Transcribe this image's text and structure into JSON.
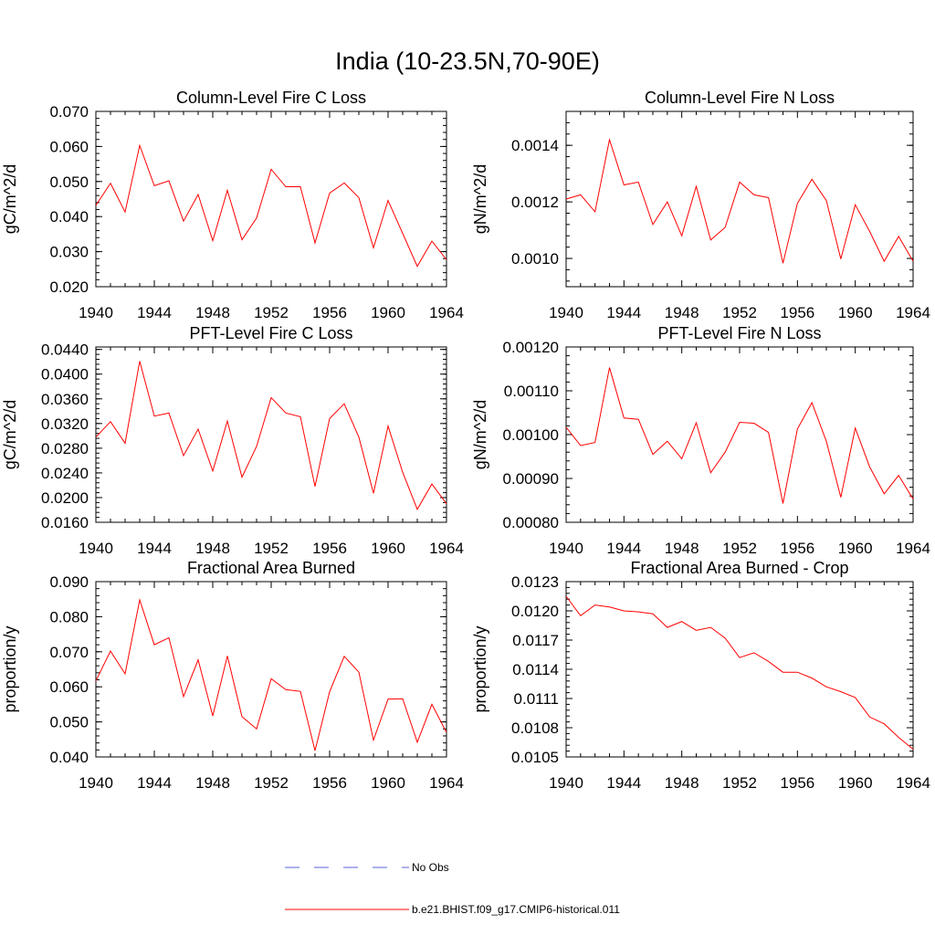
{
  "figure": {
    "title": "India (10-23.5N,70-90E)"
  },
  "legend": {
    "entries": [
      {
        "label": "No Obs",
        "color": "#5a63d4",
        "style": "dashed"
      },
      {
        "label": "b.e21.BHIST.f09_g17.CMIP6-historical.011",
        "color": "#ff0000",
        "style": "solid"
      }
    ]
  },
  "chart_data": [
    {
      "type": "line",
      "title": "Column-Level Fire C Loss",
      "ylabel": "gC/m^2/d",
      "xlabel": "",
      "xlim": [
        1940,
        1964
      ],
      "ylim": [
        0.02,
        0.07
      ],
      "x_ticks": [
        1940,
        1944,
        1948,
        1952,
        1956,
        1960,
        1964
      ],
      "y_ticks": [
        0.02,
        0.03,
        0.04,
        0.05,
        0.06,
        0.07
      ],
      "y_tick_labels": [
        "0.020",
        "0.030",
        "0.040",
        "0.050",
        "0.060",
        "0.070"
      ],
      "x": [
        1940,
        1941,
        1942,
        1943,
        1944,
        1945,
        1946,
        1947,
        1948,
        1949,
        1950,
        1951,
        1952,
        1953,
        1954,
        1955,
        1956,
        1957,
        1958,
        1959,
        1960,
        1961,
        1962,
        1963,
        1964
      ],
      "series": [
        {
          "name": "b.e21.BHIST.f09_g17.CMIP6-historical.011",
          "color": "#ff0000",
          "values": [
            0.0432,
            0.0495,
            0.0413,
            0.0603,
            0.0488,
            0.0502,
            0.0387,
            0.0463,
            0.0331,
            0.0475,
            0.0334,
            0.0396,
            0.0535,
            0.0485,
            0.0485,
            0.0325,
            0.0467,
            0.0496,
            0.0454,
            0.0311,
            0.0446,
            0.0352,
            0.0258,
            0.033,
            0.0277
          ]
        }
      ]
    },
    {
      "type": "line",
      "title": "Column-Level Fire N Loss",
      "ylabel": "gN/m^2/d",
      "xlabel": "",
      "xlim": [
        1940,
        1964
      ],
      "ylim": [
        0.0009,
        0.00152
      ],
      "x_ticks": [
        1940,
        1944,
        1948,
        1952,
        1956,
        1960,
        1964
      ],
      "y_ticks": [
        0.001,
        0.0012,
        0.0014
      ],
      "y_tick_labels": [
        "0.0010",
        "0.0012",
        "0.0014"
      ],
      "x": [
        1940,
        1941,
        1942,
        1943,
        1944,
        1945,
        1946,
        1947,
        1948,
        1949,
        1950,
        1951,
        1952,
        1953,
        1954,
        1955,
        1956,
        1957,
        1958,
        1959,
        1960,
        1961,
        1962,
        1963,
        1964
      ],
      "series": [
        {
          "name": "b.e21.BHIST.f09_g17.CMIP6-historical.011",
          "color": "#ff0000",
          "values": [
            0.00121,
            0.001225,
            0.001165,
            0.00142,
            0.00126,
            0.00127,
            0.00112,
            0.0012,
            0.00108,
            0.001255,
            0.001065,
            0.00111,
            0.00127,
            0.001225,
            0.001215,
            0.000983,
            0.001195,
            0.00128,
            0.001205,
            0.000998,
            0.00119,
            0.001095,
            0.00099,
            0.001078,
            0.00099
          ]
        }
      ]
    },
    {
      "type": "line",
      "title": "PFT-Level Fire C Loss",
      "ylabel": "gC/m^2/d",
      "xlabel": "",
      "xlim": [
        1940,
        1964
      ],
      "ylim": [
        0.016,
        0.0444
      ],
      "x_ticks": [
        1940,
        1944,
        1948,
        1952,
        1956,
        1960,
        1964
      ],
      "y_ticks": [
        0.016,
        0.02,
        0.024,
        0.028,
        0.032,
        0.036,
        0.04,
        0.044
      ],
      "y_tick_labels": [
        "0.0160",
        "0.0200",
        "0.0240",
        "0.0280",
        "0.0320",
        "0.0360",
        "0.0400",
        "0.0440"
      ],
      "x": [
        1940,
        1941,
        1942,
        1943,
        1944,
        1945,
        1946,
        1947,
        1948,
        1949,
        1950,
        1951,
        1952,
        1953,
        1954,
        1955,
        1956,
        1957,
        1958,
        1959,
        1960,
        1961,
        1962,
        1963,
        1964
      ],
      "series": [
        {
          "name": "b.e21.BHIST.f09_g17.CMIP6-historical.011",
          "color": "#ff0000",
          "values": [
            0.0298,
            0.0323,
            0.0288,
            0.0421,
            0.0332,
            0.0337,
            0.0268,
            0.0311,
            0.0243,
            0.0324,
            0.0233,
            0.0283,
            0.0362,
            0.0337,
            0.0331,
            0.0218,
            0.0328,
            0.0352,
            0.0298,
            0.0207,
            0.0316,
            0.0241,
            0.0181,
            0.0222,
            0.019
          ]
        }
      ]
    },
    {
      "type": "line",
      "title": "PFT-Level Fire N Loss",
      "ylabel": "gN/m^2/d",
      "xlabel": "",
      "xlim": [
        1940,
        1964
      ],
      "ylim": [
        0.0008,
        0.0012
      ],
      "x_ticks": [
        1940,
        1944,
        1948,
        1952,
        1956,
        1960,
        1964
      ],
      "y_ticks": [
        0.0008,
        0.0009,
        0.001,
        0.0011,
        0.0012
      ],
      "y_tick_labels": [
        "0.00080",
        "0.00090",
        "0.00100",
        "0.00110",
        "0.00120"
      ],
      "x": [
        1940,
        1941,
        1942,
        1943,
        1944,
        1945,
        1946,
        1947,
        1948,
        1949,
        1950,
        1951,
        1952,
        1953,
        1954,
        1955,
        1956,
        1957,
        1958,
        1959,
        1960,
        1961,
        1962,
        1963,
        1964
      ],
      "series": [
        {
          "name": "b.e21.BHIST.f09_g17.CMIP6-historical.011",
          "color": "#ff0000",
          "values": [
            0.001017,
            0.000975,
            0.000982,
            0.001153,
            0.001038,
            0.001035,
            0.000955,
            0.000985,
            0.000945,
            0.001027,
            0.000913,
            0.00096,
            0.001028,
            0.001026,
            0.001005,
            0.000843,
            0.001013,
            0.001073,
            0.000985,
            0.000857,
            0.001015,
            0.000926,
            0.000865,
            0.000907,
            0.000853
          ]
        }
      ]
    },
    {
      "type": "line",
      "title": "Fractional Area Burned",
      "ylabel": "proportion/y",
      "xlabel": "",
      "xlim": [
        1940,
        1964
      ],
      "ylim": [
        0.04,
        0.09
      ],
      "x_ticks": [
        1940,
        1944,
        1948,
        1952,
        1956,
        1960,
        1964
      ],
      "y_ticks": [
        0.04,
        0.05,
        0.06,
        0.07,
        0.08,
        0.09
      ],
      "y_tick_labels": [
        "0.040",
        "0.050",
        "0.060",
        "0.070",
        "0.080",
        "0.090"
      ],
      "x": [
        1940,
        1941,
        1942,
        1943,
        1944,
        1945,
        1946,
        1947,
        1948,
        1949,
        1950,
        1951,
        1952,
        1953,
        1954,
        1955,
        1956,
        1957,
        1958,
        1959,
        1960,
        1961,
        1962,
        1963,
        1964
      ],
      "series": [
        {
          "name": "b.e21.BHIST.f09_g17.CMIP6-historical.011",
          "color": "#ff0000",
          "values": [
            0.0617,
            0.0702,
            0.0637,
            0.0848,
            0.072,
            0.074,
            0.0572,
            0.0677,
            0.0517,
            0.0688,
            0.0515,
            0.048,
            0.0623,
            0.0592,
            0.0587,
            0.0418,
            0.0586,
            0.0687,
            0.0642,
            0.0448,
            0.0565,
            0.0566,
            0.0442,
            0.055,
            0.047
          ]
        }
      ]
    },
    {
      "type": "line",
      "title": "Fractional Area Burned - Crop",
      "ylabel": "proportion/y",
      "xlabel": "",
      "xlim": [
        1940,
        1964
      ],
      "ylim": [
        0.0105,
        0.0123
      ],
      "x_ticks": [
        1940,
        1944,
        1948,
        1952,
        1956,
        1960,
        1964
      ],
      "y_ticks": [
        0.0105,
        0.0108,
        0.0111,
        0.0114,
        0.0117,
        0.012,
        0.0123
      ],
      "y_tick_labels": [
        "0.0105",
        "0.0108",
        "0.0111",
        "0.0114",
        "0.0117",
        "0.0120",
        "0.0123"
      ],
      "x": [
        1940,
        1941,
        1942,
        1943,
        1944,
        1945,
        1946,
        1947,
        1948,
        1949,
        1950,
        1951,
        1952,
        1953,
        1954,
        1955,
        1956,
        1957,
        1958,
        1959,
        1960,
        1961,
        1962,
        1963,
        1964
      ],
      "series": [
        {
          "name": "b.e21.BHIST.f09_g17.CMIP6-historical.011",
          "color": "#ff0000",
          "values": [
            0.01215,
            0.01195,
            0.01206,
            0.01204,
            0.012,
            0.01199,
            0.01197,
            0.01183,
            0.01189,
            0.0118,
            0.01183,
            0.01172,
            0.01152,
            0.01157,
            0.01148,
            0.01137,
            0.01137,
            0.01131,
            0.01122,
            0.01117,
            0.01111,
            0.01091,
            0.01084,
            0.0107,
            0.01058
          ]
        }
      ]
    }
  ]
}
